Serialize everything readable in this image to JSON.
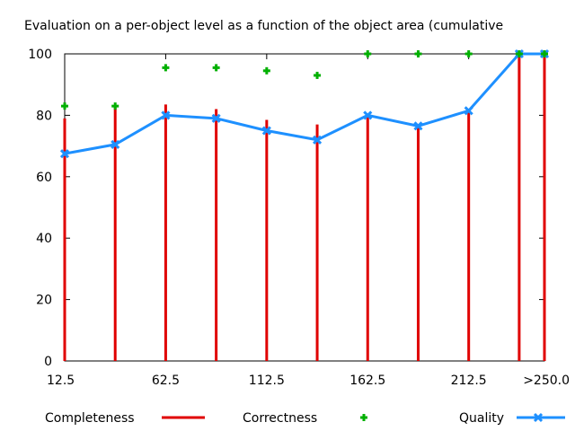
{
  "chart_data": {
    "type": "bar",
    "title": "Evaluation on a per-object level as a function of the object area (cumulative",
    "xlabel": "",
    "ylabel": "",
    "x": [
      12.5,
      37.5,
      62.5,
      87.5,
      112.5,
      137.5,
      162.5,
      187.5,
      212.5,
      237.5,
      250
    ],
    "x_tick_labels": [
      "12.5",
      "62.5",
      "112.5",
      "162.5",
      "212.5",
      ">250.0"
    ],
    "x_tick_values": [
      12.5,
      62.5,
      112.5,
      162.5,
      212.5,
      250
    ],
    "xlim": [
      12.5,
      250
    ],
    "ylim": [
      0,
      100
    ],
    "y_ticks": [
      0,
      20,
      40,
      60,
      80,
      100
    ],
    "grid": false,
    "legend": "bottom",
    "series": [
      {
        "name": "Completeness",
        "style": "impulses",
        "color": "#e00000",
        "values": [
          79,
          83,
          83.5,
          82,
          78.5,
          77,
          80,
          77,
          81.5,
          100,
          100
        ]
      },
      {
        "name": "Correctness",
        "style": "points",
        "color": "#00b000",
        "values": [
          83,
          83,
          95.5,
          95.5,
          94.5,
          93,
          100,
          100,
          100,
          100,
          100
        ]
      },
      {
        "name": "Quality",
        "style": "linespoints",
        "color": "#1e90ff",
        "values": [
          67.5,
          70.5,
          80,
          79,
          75,
          72,
          80,
          76.5,
          81.5,
          100,
          100
        ]
      }
    ]
  }
}
